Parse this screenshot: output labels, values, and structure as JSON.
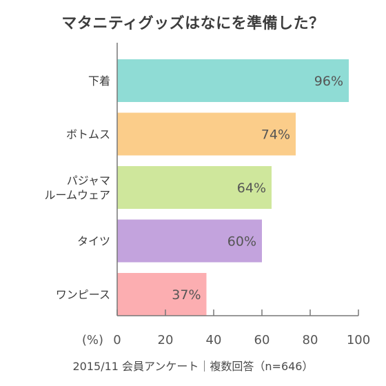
{
  "title": "マタニティグッズはなにを準備した？",
  "source_note": "2015/11 会員アンケート｜複数回答（n=646）",
  "chart_data": {
    "type": "bar",
    "orientation": "horizontal",
    "title": "マタニティグッズはなにを準備した？",
    "x_unit_label": "(%)",
    "xlim": [
      0,
      100
    ],
    "x_ticks": [
      0,
      20,
      40,
      60,
      80,
      100
    ],
    "grid": false,
    "categories": [
      [
        "下着"
      ],
      [
        "ボトムス"
      ],
      [
        "パジャマ",
        "ルームウェア"
      ],
      [
        "タイツ"
      ],
      [
        "ワンピース"
      ]
    ],
    "values": [
      96,
      74,
      64,
      60,
      37
    ],
    "data_labels": [
      "96%",
      "74%",
      "64%",
      "60%",
      "37%"
    ],
    "bar_colors": [
      "#8fdcd5",
      "#fbcd8a",
      "#cfe79c",
      "#c3a3dd",
      "#fcaeb1"
    ]
  }
}
